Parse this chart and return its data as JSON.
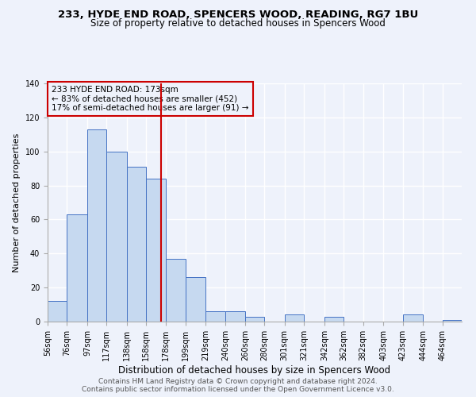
{
  "title": "233, HYDE END ROAD, SPENCERS WOOD, READING, RG7 1BU",
  "subtitle": "Size of property relative to detached houses in Spencers Wood",
  "xlabel": "Distribution of detached houses by size in Spencers Wood",
  "ylabel": "Number of detached properties",
  "bin_labels": [
    "56sqm",
    "76sqm",
    "97sqm",
    "117sqm",
    "138sqm",
    "158sqm",
    "178sqm",
    "199sqm",
    "219sqm",
    "240sqm",
    "260sqm",
    "280sqm",
    "301sqm",
    "321sqm",
    "342sqm",
    "362sqm",
    "382sqm",
    "403sqm",
    "423sqm",
    "444sqm",
    "464sqm"
  ],
  "bin_edges": [
    56,
    76,
    97,
    117,
    138,
    158,
    178,
    199,
    219,
    240,
    260,
    280,
    301,
    321,
    342,
    362,
    382,
    403,
    423,
    444,
    464
  ],
  "bin_counts": [
    12,
    63,
    113,
    100,
    91,
    84,
    37,
    26,
    6,
    6,
    3,
    0,
    4,
    0,
    3,
    0,
    0,
    0,
    4,
    0,
    1
  ],
  "bar_color": "#c6d9f0",
  "bar_edge_color": "#4472c4",
  "vline_x": 173,
  "vline_color": "#cc0000",
  "annotation_line1": "233 HYDE END ROAD: 173sqm",
  "annotation_line2": "← 83% of detached houses are smaller (452)",
  "annotation_line3": "17% of semi-detached houses are larger (91) →",
  "annotation_box_color": "#cc0000",
  "ylim": [
    0,
    140
  ],
  "yticks": [
    0,
    20,
    40,
    60,
    80,
    100,
    120,
    140
  ],
  "footer1": "Contains HM Land Registry data © Crown copyright and database right 2024.",
  "footer2": "Contains public sector information licensed under the Open Government Licence v3.0.",
  "bg_color": "#eef2fb",
  "grid_color": "#ffffff",
  "title_fontsize": 9.5,
  "subtitle_fontsize": 8.5,
  "xlabel_fontsize": 8.5,
  "ylabel_fontsize": 8,
  "tick_fontsize": 7,
  "footer_fontsize": 6.5,
  "annot_fontsize": 7.5
}
